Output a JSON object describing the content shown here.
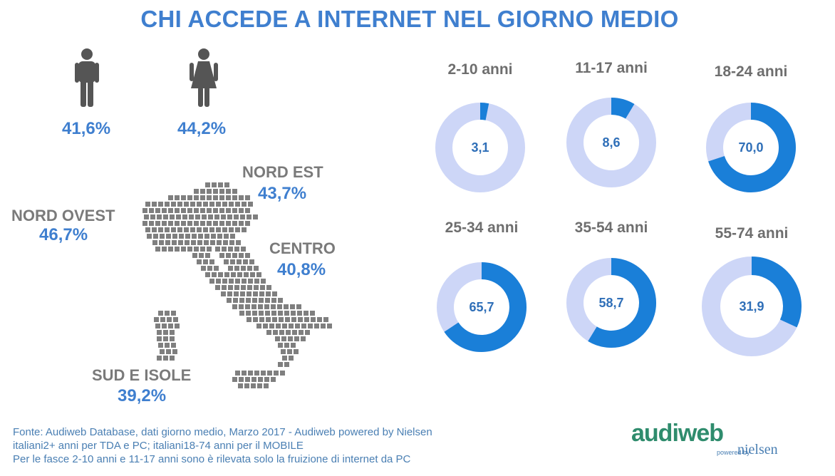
{
  "title": "CHI ACCEDE A INTERNET NEL GIORNO MEDIO",
  "gender": {
    "male": {
      "icon": "male-figure-icon",
      "value": "41,6%"
    },
    "female": {
      "icon": "female-figure-icon",
      "value": "44,2%"
    }
  },
  "regions": {
    "nord_ovest": {
      "label": "NORD OVEST",
      "value": "46,7%"
    },
    "nord_est": {
      "label": "NORD EST",
      "value": "43,7%"
    },
    "centro": {
      "label": "CENTRO",
      "value": "40,8%"
    },
    "sud_isole": {
      "label": "SUD E ISOLE",
      "value": "39,2%"
    }
  },
  "colors": {
    "accent": "#1a7fd8",
    "track": "#cdd6f7",
    "title": "#3f7fcf",
    "region_label": "#7a7a7a",
    "map_dot": "#7f7f7f"
  },
  "chart_data": {
    "type": "pie",
    "variant": "donut",
    "max": 100,
    "series": [
      {
        "name": "2-10 anni",
        "value": 3.1,
        "label": "3,1"
      },
      {
        "name": "11-17 anni",
        "value": 8.6,
        "label": "8,6"
      },
      {
        "name": "18-24 anni",
        "value": 70.0,
        "label": "70,0"
      },
      {
        "name": "25-34 anni",
        "value": 65.7,
        "label": "65,7"
      },
      {
        "name": "35-54 anni",
        "value": 58.7,
        "label": "58,7"
      },
      {
        "name": "55-74 anni",
        "value": 31.9,
        "label": "31,9"
      }
    ]
  },
  "footer": {
    "line1": "Fonte: Audiweb Database, dati giorno medio, Marzo 2017 - Audiweb powered by Nielsen",
    "line2": "italiani2+ anni per TDA e PC; italiani18-74 anni per il MOBILE",
    "line3": "Per le fasce 2-10 anni e 11-17 anni sono è rilevata solo la fruizione di internet da PC"
  },
  "logo": {
    "brand": "audiweb",
    "powered": "powered by",
    "partner": "nielsen"
  }
}
